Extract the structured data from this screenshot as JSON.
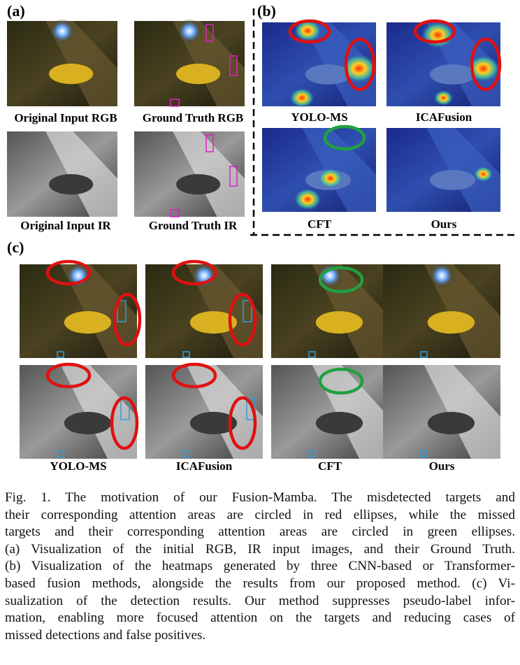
{
  "panel_a": {
    "label": "(a)",
    "images": [
      "Original Input RGB",
      "Ground Truth RGB",
      "Original Input IR",
      "Ground Truth IR"
    ]
  },
  "panel_b": {
    "label": "(b)",
    "images": [
      "YOLO-MS",
      "ICAFusion",
      "CFT",
      "Ours"
    ]
  },
  "panel_c": {
    "label": "(c)",
    "methods": [
      "YOLO-MS",
      "ICAFusion",
      "CFT",
      "Ours"
    ]
  },
  "caption": {
    "lines": [
      "Fig. 1.    The motivation of our Fusion-Mamba. The misdetected targets and",
      "their corresponding attention areas are circled in red ellipses, while the missed",
      "targets and their corresponding attention areas are circled in green ellipses.",
      "(a) Visualization of the initial RGB, IR input images, and their Ground Truth.",
      "(b) Visualization of the heatmaps generated by three CNN-based or Transformer-",
      "based fusion methods, alongside the results from our proposed method. (c) Vi-",
      "sualization of the detection results. Our method suppresses pseudo-label infor-",
      "mation, enabling more focused attention on the targets and reducing cases of",
      "missed detections and false positives."
    ]
  }
}
